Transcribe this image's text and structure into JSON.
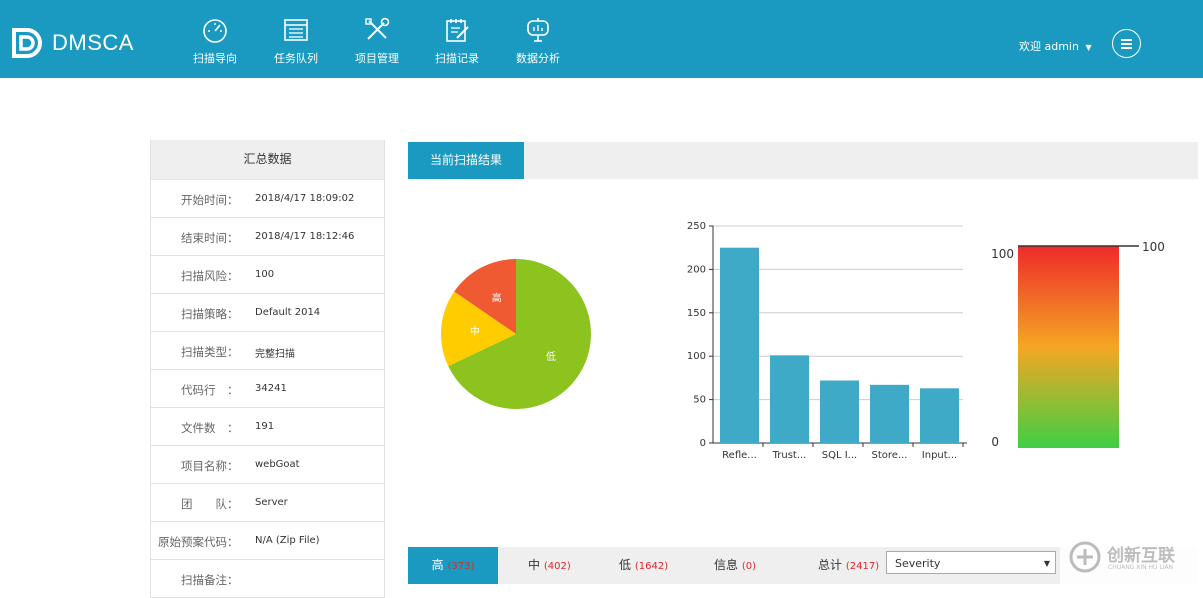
{
  "brand": {
    "name": "DMSCA"
  },
  "nav": [
    {
      "label": "扫描导向",
      "icon": "gauge-icon"
    },
    {
      "label": "任务队列",
      "icon": "list-window-icon"
    },
    {
      "label": "项目管理",
      "icon": "tools-icon"
    },
    {
      "label": "扫描记录",
      "icon": "edit-record-icon"
    },
    {
      "label": "数据分析",
      "icon": "presentation-icon"
    }
  ],
  "user": {
    "label": "欢迎 admin"
  },
  "summary": {
    "title": "汇总数据",
    "rows": [
      {
        "label": "开始时间：",
        "value": "2018/4/17 18:09:02"
      },
      {
        "label": "结束时间：",
        "value": "2018/4/17 18:12:46"
      },
      {
        "label": "扫描风险：",
        "value": "100"
      },
      {
        "label": "扫描策略：",
        "value": "Default 2014"
      },
      {
        "label": "扫描类型：",
        "value": "完整扫描"
      },
      {
        "label": "代码行　：",
        "value": "34241"
      },
      {
        "label": "文件数　：",
        "value": "191"
      },
      {
        "label": "项目名称：",
        "value": "webGoat"
      },
      {
        "label": "团　　队：",
        "value": "Server"
      },
      {
        "label": "原始预案代码：",
        "value": "N/A (Zip File)"
      },
      {
        "label": "扫描备注：",
        "value": ""
      }
    ]
  },
  "panel": {
    "tab_label": "当前扫描结果"
  },
  "chart_data": [
    {
      "type": "pie",
      "labels": [
        "高",
        "中",
        "低"
      ],
      "values": [
        373,
        402,
        1642
      ],
      "colors": [
        "#f05a32",
        "#ffcc00",
        "#8dc31f"
      ]
    },
    {
      "type": "bar",
      "categories": [
        "Refle...",
        "Trust...",
        "SQL I...",
        "Store...",
        "Input..."
      ],
      "values": [
        225,
        101,
        72,
        67,
        63
      ],
      "yticks": [
        0,
        50,
        100,
        150,
        200,
        250
      ],
      "ylim": [
        0,
        250
      ],
      "color": "#3fa9c8"
    },
    {
      "type": "gauge",
      "value": 100,
      "min": 0,
      "max": 100,
      "label_max": "100",
      "label_min": "0",
      "label_value": "100"
    }
  ],
  "bottom_tabs": [
    {
      "label": "高",
      "count": "(373)"
    },
    {
      "label": "中",
      "count": "(402)"
    },
    {
      "label": "低",
      "count": "(1642)"
    },
    {
      "label": "信息",
      "count": "(0)"
    },
    {
      "label": "总计",
      "count": "(2417)"
    }
  ],
  "severity_select": {
    "value": "Severity"
  },
  "watermark": {
    "text": "创新互联",
    "sub": "CHUANG XIN HU LIAN"
  }
}
